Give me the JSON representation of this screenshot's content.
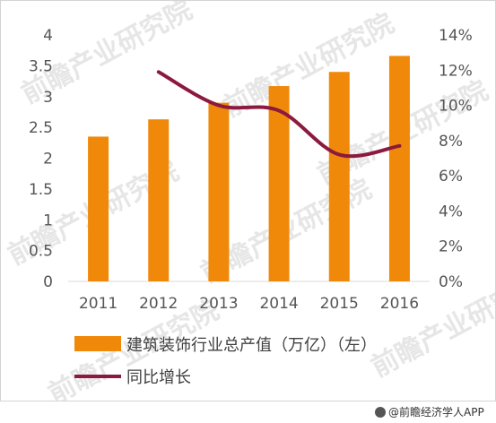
{
  "chart_data": {
    "type": "bar",
    "categories": [
      "2011",
      "2012",
      "2013",
      "2014",
      "2015",
      "2016"
    ],
    "series": [
      {
        "name": "建筑装饰行业总产值（万亿）（左）",
        "type": "bar",
        "axis": "left",
        "color": "#f0890a",
        "values": [
          2.35,
          2.63,
          2.9,
          3.17,
          3.4,
          3.66
        ]
      },
      {
        "name": "同比增长",
        "type": "line",
        "axis": "right",
        "color": "#8b1a3e",
        "values": [
          null,
          11.9,
          10.0,
          9.7,
          7.2,
          7.7
        ]
      }
    ],
    "y_left": {
      "ylim": [
        0,
        4
      ],
      "ticks": [
        "0",
        "0.5",
        "1",
        "1.5",
        "2",
        "2.5",
        "3",
        "3.5",
        "4"
      ]
    },
    "y_right": {
      "ylim": [
        0,
        14
      ],
      "ticks": [
        "0%",
        "2%",
        "4%",
        "6%",
        "8%",
        "10%",
        "12%",
        "14%"
      ]
    },
    "grid": false,
    "legend_position": "bottom-left"
  },
  "watermark_text": "前瞻产业研究院",
  "source_text": "@前瞻经济学人APP"
}
